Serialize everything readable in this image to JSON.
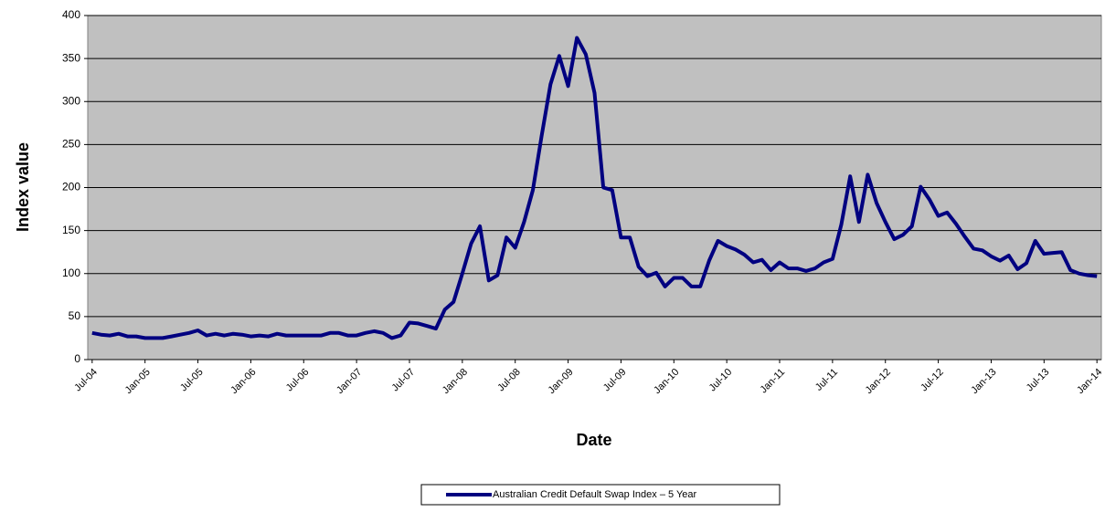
{
  "chart_data": {
    "type": "line",
    "xlabel": "Date",
    "ylabel": "Index value",
    "categories": [
      "Jul-04",
      null,
      null,
      null,
      null,
      null,
      "Jan-05",
      null,
      null,
      null,
      null,
      null,
      "Jul-05",
      null,
      null,
      null,
      null,
      null,
      "Jan-06",
      null,
      null,
      null,
      null,
      null,
      "Jul-06",
      null,
      null,
      null,
      null,
      null,
      "Jan-07",
      null,
      null,
      null,
      null,
      null,
      "Jul-07",
      null,
      null,
      null,
      null,
      null,
      "Jan-08",
      null,
      null,
      null,
      null,
      null,
      "Jul-08",
      null,
      null,
      null,
      null,
      null,
      "Jan-09",
      null,
      null,
      null,
      null,
      null,
      "Jul-09",
      null,
      null,
      null,
      null,
      null,
      "Jan-10",
      null,
      null,
      null,
      null,
      null,
      "Jul-10",
      null,
      null,
      null,
      null,
      null,
      "Jan-11",
      null,
      null,
      null,
      null,
      null,
      "Jul-11",
      null,
      null,
      null,
      null,
      null,
      "Jan-12",
      null,
      null,
      null,
      null,
      null,
      "Jul-12",
      null,
      null,
      null,
      null,
      null,
      "Jan-13",
      null,
      null,
      null,
      null,
      null,
      "Jul-13",
      null,
      null,
      null,
      null,
      null,
      "Jan-14"
    ],
    "series": [
      {
        "name": "Australian Credit Default Swap Index – 5 Year",
        "color": "#000080",
        "values": [
          31,
          29,
          28,
          30,
          27,
          27,
          25,
          25,
          25,
          27,
          29,
          31,
          34,
          28,
          30,
          28,
          30,
          29,
          27,
          28,
          27,
          30,
          28,
          28,
          28,
          28,
          28,
          31,
          31,
          28,
          28,
          31,
          33,
          31,
          25,
          28,
          43,
          42,
          39,
          36,
          58,
          67,
          100,
          135,
          155,
          92,
          98,
          142,
          130,
          160,
          197,
          260,
          320,
          353,
          318,
          374,
          355,
          310,
          200,
          197,
          142,
          142,
          108,
          97,
          101,
          85,
          95,
          95,
          85,
          85,
          115,
          138,
          132,
          128,
          122,
          113,
          116,
          104,
          113,
          106,
          106,
          103,
          106,
          113,
          117,
          157,
          213,
          160,
          215,
          182,
          160,
          140,
          145,
          155,
          201,
          186,
          167,
          171,
          158,
          143,
          129,
          127,
          120,
          115,
          121,
          105,
          112,
          138,
          123,
          124,
          125,
          104,
          100,
          98,
          97
        ]
      }
    ],
    "ylim": [
      0,
      400
    ],
    "yticks": [
      0,
      50,
      100,
      150,
      200,
      250,
      300,
      350,
      400
    ],
    "grid": true
  }
}
